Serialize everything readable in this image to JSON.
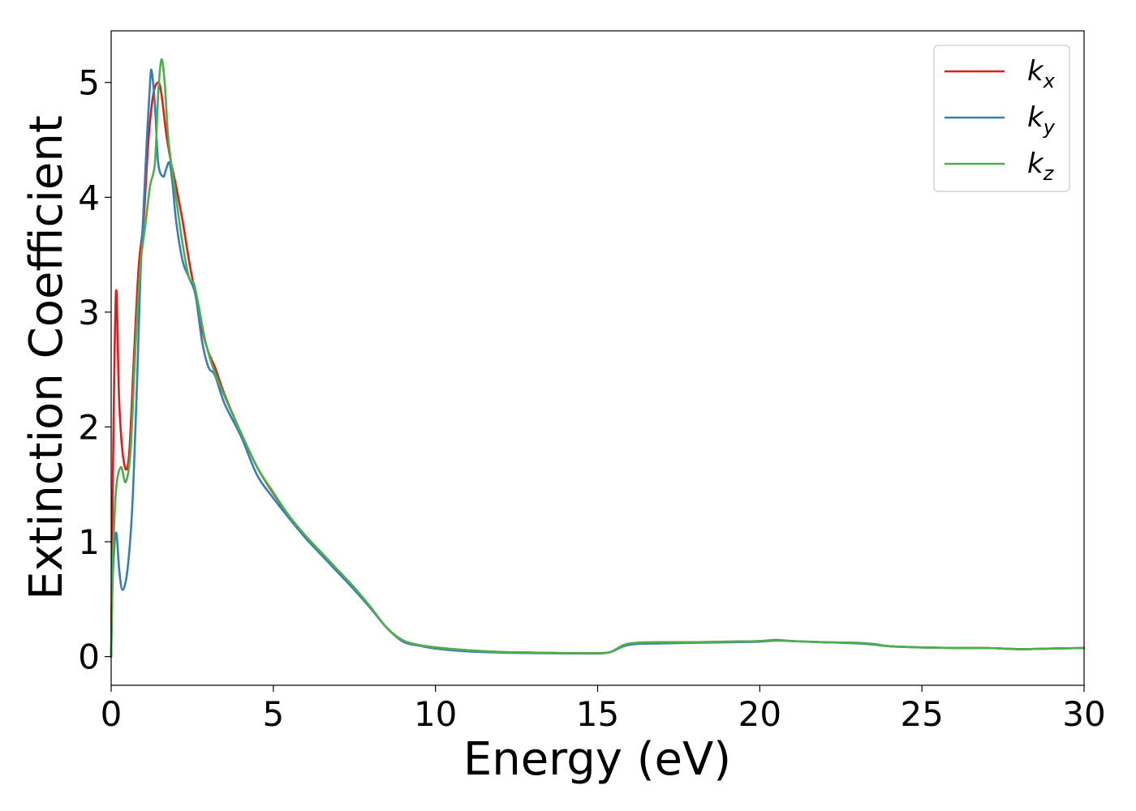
{
  "chart_data": {
    "type": "line",
    "title": "",
    "xlabel": "Energy (eV)",
    "ylabel": "Extinction Coefficient",
    "xlim": [
      0,
      30
    ],
    "ylim": [
      -0.25,
      5.45
    ],
    "xticks": [
      "0",
      "5",
      "10",
      "15",
      "20",
      "25",
      "30"
    ],
    "yticks": [
      "0",
      "1",
      "2",
      "3",
      "4",
      "5"
    ],
    "grid": false,
    "legend_position": "top-right",
    "series": [
      {
        "name": "k",
        "subscript": "x",
        "color": "#e41a1c",
        "x": [
          0,
          0.05,
          0.15,
          0.25,
          0.4,
          0.55,
          0.7,
          0.85,
          1.0,
          1.15,
          1.3,
          1.45,
          1.55,
          1.7,
          1.85,
          2.0,
          2.2,
          2.4,
          2.6,
          2.8,
          3.0,
          3.2,
          3.5,
          4.0,
          4.5,
          5.0,
          5.5,
          6.0,
          6.5,
          7.0,
          7.5,
          8.0,
          8.5,
          9.0,
          9.5,
          10,
          11,
          12,
          13,
          14,
          15,
          15.4,
          15.8,
          16.2,
          17,
          18,
          19,
          20,
          20.5,
          21,
          22,
          23,
          23.5,
          24,
          25,
          26,
          27,
          28,
          29,
          30
        ],
        "y": [
          0,
          1.5,
          3.18,
          2.2,
          1.68,
          1.75,
          2.6,
          3.4,
          3.8,
          4.5,
          4.9,
          5.0,
          4.9,
          4.55,
          4.3,
          4.1,
          3.8,
          3.45,
          3.15,
          2.85,
          2.65,
          2.52,
          2.28,
          1.95,
          1.65,
          1.42,
          1.22,
          1.05,
          0.9,
          0.75,
          0.6,
          0.43,
          0.25,
          0.14,
          0.1,
          0.08,
          0.055,
          0.04,
          0.035,
          0.03,
          0.03,
          0.04,
          0.1,
          0.12,
          0.125,
          0.125,
          0.13,
          0.135,
          0.145,
          0.135,
          0.125,
          0.12,
          0.11,
          0.09,
          0.08,
          0.075,
          0.075,
          0.065,
          0.07,
          0.075
        ]
      },
      {
        "name": "k",
        "subscript": "y",
        "color": "#377eb8",
        "x": [
          0,
          0.05,
          0.15,
          0.25,
          0.35,
          0.5,
          0.65,
          0.8,
          0.9,
          1.0,
          1.1,
          1.2,
          1.25,
          1.35,
          1.45,
          1.6,
          1.7,
          1.8,
          1.9,
          2.0,
          2.2,
          2.4,
          2.6,
          2.8,
          3.0,
          3.2,
          3.5,
          4.0,
          4.5,
          5.0,
          5.5,
          6.0,
          6.5,
          7.0,
          7.5,
          8.0,
          8.5,
          9.0,
          9.5,
          10,
          11,
          12,
          13,
          14,
          15,
          15.4,
          15.8,
          16.2,
          17,
          18,
          19,
          20,
          20.5,
          21,
          22,
          23,
          23.5,
          24,
          25,
          26,
          27,
          28,
          29,
          30
        ],
        "y": [
          0,
          0.7,
          1.08,
          0.75,
          0.58,
          0.75,
          1.3,
          2.4,
          3.3,
          3.9,
          4.5,
          5.0,
          5.1,
          4.8,
          4.3,
          4.18,
          4.25,
          4.3,
          4.1,
          3.8,
          3.45,
          3.3,
          3.15,
          2.75,
          2.52,
          2.45,
          2.2,
          1.92,
          1.58,
          1.38,
          1.2,
          1.03,
          0.88,
          0.73,
          0.58,
          0.42,
          0.25,
          0.13,
          0.095,
          0.07,
          0.045,
          0.035,
          0.03,
          0.028,
          0.028,
          0.04,
          0.09,
          0.11,
          0.115,
          0.12,
          0.125,
          0.13,
          0.14,
          0.135,
          0.125,
          0.115,
          0.105,
          0.09,
          0.08,
          0.075,
          0.075,
          0.065,
          0.07,
          0.075
        ]
      },
      {
        "name": "k",
        "subscript": "z",
        "color": "#4daf4a",
        "x": [
          0,
          0.05,
          0.15,
          0.3,
          0.45,
          0.6,
          0.75,
          0.9,
          1.05,
          1.2,
          1.35,
          1.45,
          1.55,
          1.65,
          1.75,
          1.85,
          2.0,
          2.2,
          2.4,
          2.55,
          2.7,
          2.9,
          3.1,
          3.3,
          3.6,
          4.0,
          4.5,
          5.0,
          5.5,
          6.0,
          6.5,
          7.0,
          7.5,
          8.0,
          8.5,
          9.0,
          9.5,
          10,
          11,
          12,
          13,
          14,
          15,
          15.4,
          15.8,
          16.2,
          17,
          18,
          19,
          20,
          20.5,
          21,
          22,
          23,
          23.5,
          24,
          25,
          26,
          27,
          28,
          29,
          30
        ],
        "y": [
          0,
          0.8,
          1.45,
          1.65,
          1.52,
          1.8,
          2.7,
          3.4,
          3.75,
          4.1,
          4.3,
          4.9,
          5.2,
          5.0,
          4.55,
          4.3,
          4.0,
          3.6,
          3.3,
          3.25,
          3.05,
          2.75,
          2.55,
          2.4,
          2.2,
          1.95,
          1.65,
          1.43,
          1.22,
          1.05,
          0.9,
          0.75,
          0.6,
          0.43,
          0.25,
          0.14,
          0.1,
          0.08,
          0.055,
          0.04,
          0.035,
          0.03,
          0.03,
          0.04,
          0.1,
          0.12,
          0.125,
          0.125,
          0.13,
          0.135,
          0.145,
          0.135,
          0.125,
          0.12,
          0.11,
          0.09,
          0.08,
          0.075,
          0.075,
          0.065,
          0.07,
          0.075
        ]
      }
    ]
  }
}
